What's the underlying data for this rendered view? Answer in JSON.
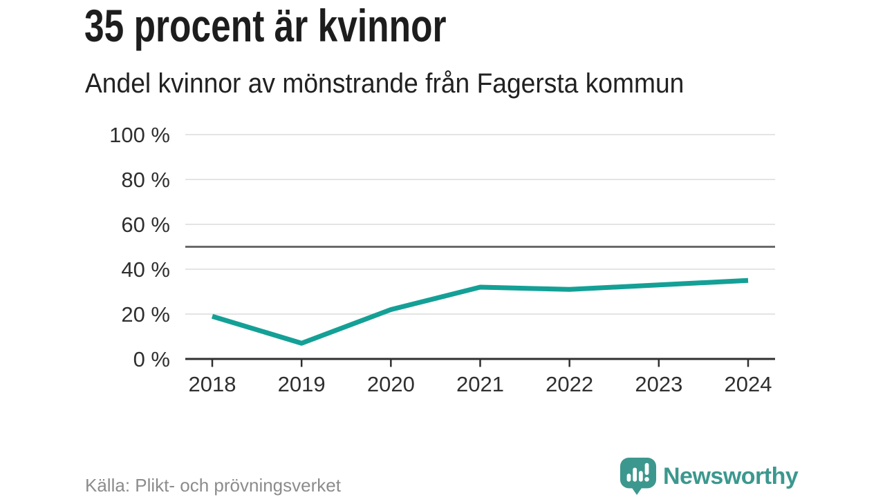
{
  "header": {
    "title": "35 procent är kvinnor",
    "subtitle": "Andel kvinnor av mönstrande från Fagersta kommun"
  },
  "footer": {
    "source": "Källa: Plikt- och prövningsverket",
    "brand": "Newsworthy"
  },
  "colors": {
    "line": "#14a096",
    "grid": "#e4e4e4",
    "reference_line": "#6a6a6a",
    "axis": "#2f2f2f",
    "tick_label": "#2f2f2f",
    "title_text": "#1d1d1d",
    "source_text": "#8c8c8c",
    "brand_teal": "#3c988e",
    "background": "#ffffff"
  },
  "chart_data": {
    "type": "line",
    "title": "35 procent är kvinnor",
    "subtitle": "Andel kvinnor av mönstrande från Fagersta kommun",
    "categories": [
      "2018",
      "2019",
      "2020",
      "2021",
      "2022",
      "2023",
      "2024"
    ],
    "values": [
      19,
      7,
      22,
      32,
      31,
      33,
      35
    ],
    "unit": "%",
    "xlabel": "",
    "ylabel": "",
    "ylim": [
      0,
      100
    ],
    "y_ticks": [
      0,
      20,
      40,
      60,
      80,
      100
    ],
    "y_tick_suffix": " %",
    "reference_line": 50,
    "grid": true,
    "legend": false,
    "source": "Källa: Plikt- och prövningsverket"
  }
}
